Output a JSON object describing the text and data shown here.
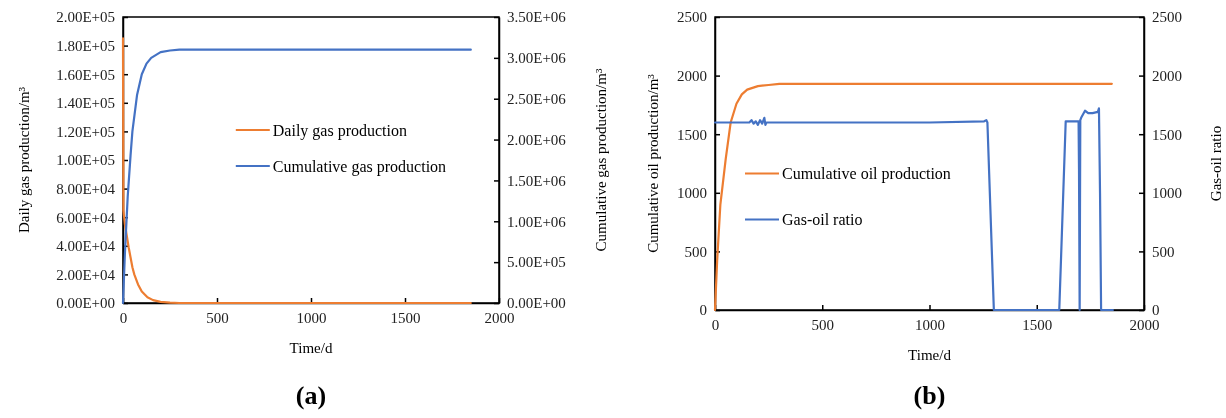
{
  "chart_data": [
    {
      "type": "line",
      "title": "(a)",
      "xlabel": "Time/d",
      "ylabel": "Daily gas production/m³",
      "y2label": "Cumulative gas production/m³",
      "xlim": [
        0,
        2000
      ],
      "xticks": [
        0,
        500,
        1000,
        1500,
        2000
      ],
      "ylim": [
        0,
        200000
      ],
      "yticks": [
        {
          "value": 0,
          "label": "0.00E+00"
        },
        {
          "value": 20000,
          "label": "2.00E+04"
        },
        {
          "value": 40000,
          "label": "4.00E+04"
        },
        {
          "value": 60000,
          "label": "6.00E+04"
        },
        {
          "value": 80000,
          "label": "8.00E+04"
        },
        {
          "value": 100000,
          "label": "1.00E+05"
        },
        {
          "value": 120000,
          "label": "1.20E+05"
        },
        {
          "value": 140000,
          "label": "1.40E+05"
        },
        {
          "value": 160000,
          "label": "1.60E+05"
        },
        {
          "value": 180000,
          "label": "1.80E+05"
        },
        {
          "value": 200000,
          "label": "2.00E+05"
        }
      ],
      "y2lim": [
        0,
        3500000
      ],
      "y2ticks": [
        {
          "value": 0,
          "label": "0.00E+00"
        },
        {
          "value": 500000,
          "label": "5.00E+05"
        },
        {
          "value": 1000000,
          "label": "1.00E+06"
        },
        {
          "value": 1500000,
          "label": "1.50E+06"
        },
        {
          "value": 2000000,
          "label": "2.00E+06"
        },
        {
          "value": 2500000,
          "label": "2.50E+06"
        },
        {
          "value": 3000000,
          "label": "3.00E+06"
        },
        {
          "value": 3500000,
          "label": "3.50E+06"
        }
      ],
      "legend": "right",
      "series": [
        {
          "name": "Daily gas production",
          "color": "#ed7d31",
          "x": [
            0,
            2,
            10,
            20,
            30,
            40,
            50,
            60,
            80,
            100,
            130,
            160,
            200,
            250,
            300,
            500,
            1000,
            1500,
            1850
          ],
          "values": [
            185000,
            65000,
            55000,
            47000,
            39000,
            32000,
            25000,
            20000,
            13000,
            8000,
            4000,
            2000,
            800,
            200,
            0,
            0,
            0,
            0,
            0
          ]
        },
        {
          "name": "Cumulative gas production",
          "color": "#4472c4",
          "axis": "y2",
          "x": [
            0,
            10,
            25,
            40,
            50,
            75,
            100,
            125,
            150,
            200,
            250,
            300,
            500,
            1000,
            1500,
            1850
          ],
          "values": [
            0,
            600000,
            1300000,
            1800000,
            2100000,
            2550000,
            2800000,
            2930000,
            3000000,
            3070000,
            3090000,
            3100000,
            3100000,
            3100000,
            3100000,
            3100000
          ]
        }
      ]
    },
    {
      "type": "line",
      "title": "(b)",
      "xlabel": "Time/d",
      "ylabel": "Cumulative oil production/m³",
      "y2label": "Gas-oil ratio",
      "xlim": [
        0,
        2000
      ],
      "xticks": [
        0,
        500,
        1000,
        1500,
        2000
      ],
      "ylim": [
        0,
        2500
      ],
      "yticks": [
        0,
        500,
        1000,
        1500,
        2000,
        2500
      ],
      "y2lim": [
        0,
        2500
      ],
      "y2ticks": [
        0,
        500,
        1000,
        1500,
        2000,
        2500
      ],
      "legend": "left",
      "series": [
        {
          "name": "Cumulative oil production",
          "color": "#ed7d31",
          "x": [
            0,
            10,
            25,
            50,
            73,
            100,
            125,
            150,
            200,
            250,
            300,
            500,
            1000,
            1500,
            1850
          ],
          "values": [
            0,
            420,
            900,
            1290,
            1600,
            1760,
            1840,
            1880,
            1910,
            1920,
            1930,
            1930,
            1930,
            1930,
            1930
          ]
        },
        {
          "name": "Gas-oil ratio",
          "color": "#4472c4",
          "axis": "y2",
          "x": [
            0,
            100,
            160,
            170,
            180,
            190,
            200,
            210,
            220,
            230,
            235,
            240,
            500,
            1000,
            1255,
            1265,
            1270,
            1300,
            1605,
            1635,
            1695,
            1697,
            1700,
            1703,
            1707,
            1725,
            1740,
            1760,
            1785,
            1790,
            1795,
            1800,
            1855
          ],
          "values": [
            1600,
            1600,
            1600,
            1620,
            1590,
            1610,
            1580,
            1620,
            1590,
            1640,
            1580,
            1600,
            1600,
            1600,
            1610,
            1620,
            1600,
            0,
            0,
            1610,
            1610,
            1200,
            0,
            1620,
            1640,
            1700,
            1680,
            1680,
            1690,
            1720,
            1000,
            0,
            0
          ]
        }
      ]
    }
  ]
}
